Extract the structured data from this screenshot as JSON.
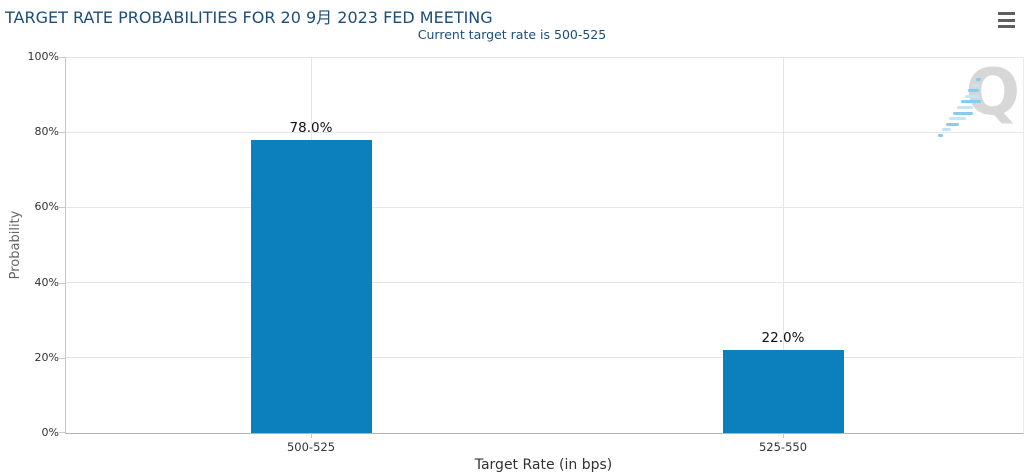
{
  "header": {
    "menu_icon": "hamburger-icon"
  },
  "watermark": {
    "letter": "Q",
    "name": "quandl-logo"
  },
  "colors": {
    "bar": "#0b80bc",
    "title_text": "#1d4e79",
    "axis_label": "#333333",
    "axis_title_y": "#666666",
    "grid": "#e6e6e6",
    "axis_line": "#b3b3b3",
    "menu_icon": "#5f5f5f",
    "watermark_q": "#d7d7d7",
    "watermark_dash_light": "#c2e6f8",
    "watermark_dash_dark": "#85ccee"
  },
  "chart_data": {
    "type": "bar",
    "title": "TARGET RATE PROBABILITIES FOR 20 9月 2023 FED MEETING",
    "subtitle": "Current target rate is 500-525",
    "categories": [
      "500-525",
      "525-550"
    ],
    "values": [
      78.0,
      22.0
    ],
    "value_labels": [
      "78.0%",
      "22.0%"
    ],
    "xlabel": "Target Rate (in bps)",
    "ylabel": "Probability",
    "ylim": [
      0,
      100
    ],
    "ytick_step": 20,
    "ytick_labels": [
      "0%",
      "20%",
      "40%",
      "60%",
      "80%",
      "100%"
    ],
    "grid": true,
    "legend": false,
    "bar_color": "#0b80bc"
  }
}
